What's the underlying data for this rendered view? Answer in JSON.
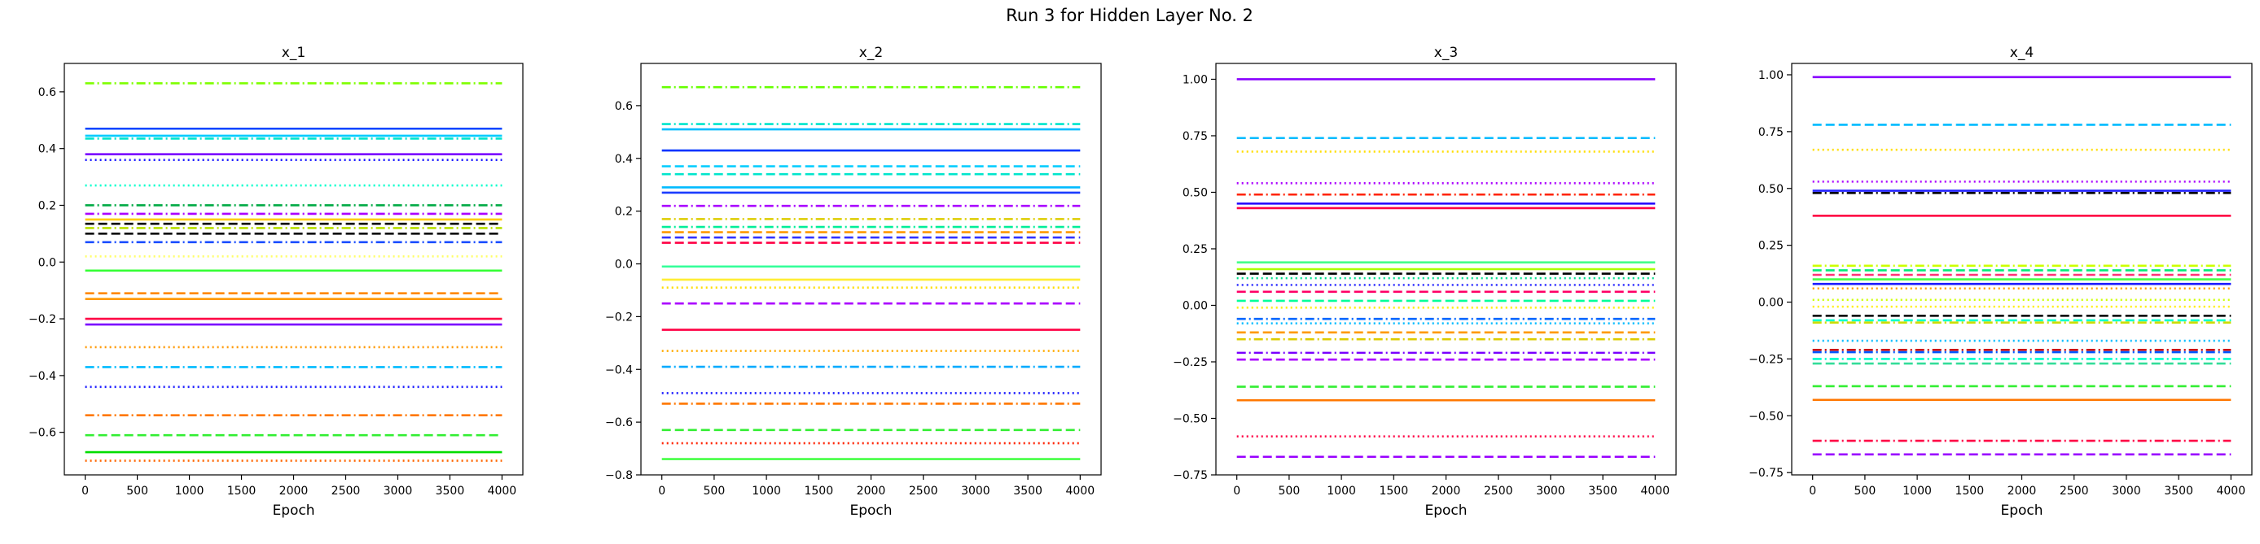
{
  "figure": {
    "title": "Run 3 for Hidden Layer No. 2"
  },
  "chart_data": [
    {
      "type": "line",
      "title": "x_1",
      "xlabel": "Epoch",
      "ylabel": "",
      "xlim": [
        -200,
        4200
      ],
      "ylim": [
        -0.75,
        0.7
      ],
      "xticks": [
        0,
        500,
        1000,
        1500,
        2000,
        2500,
        3000,
        3500,
        4000
      ],
      "yticks": [
        -0.6,
        -0.4,
        -0.2,
        0.0,
        0.2,
        0.4,
        0.6
      ],
      "ytick_labels": [
        "−0.6",
        "−0.4",
        "−0.2",
        "0.0",
        "0.2",
        "0.4",
        "0.6"
      ],
      "x": [
        0,
        4000
      ],
      "series": [
        {
          "value": 0.63,
          "color": "#7fff00",
          "style": "dashdot"
        },
        {
          "value": 0.47,
          "color": "#0044ff",
          "style": "solid"
        },
        {
          "value": 0.445,
          "color": "#00ccff",
          "style": "solid"
        },
        {
          "value": 0.435,
          "color": "#00e5cc",
          "style": "dashdot"
        },
        {
          "value": 0.38,
          "color": "#7a00ff",
          "style": "solid"
        },
        {
          "value": 0.36,
          "color": "#1a1aff",
          "style": "dotted"
        },
        {
          "value": 0.27,
          "color": "#00ffcc",
          "style": "dotted"
        },
        {
          "value": 0.2,
          "color": "#00aa44",
          "style": "dashdot"
        },
        {
          "value": 0.17,
          "color": "#aa00ff",
          "style": "dashdot"
        },
        {
          "value": 0.15,
          "color": "#ffcc00",
          "style": "solid"
        },
        {
          "value": 0.135,
          "color": "#000000",
          "style": "dashed"
        },
        {
          "value": 0.12,
          "color": "#b8e000",
          "style": "dashdot"
        },
        {
          "value": 0.1,
          "color": "#000000",
          "style": "dashed"
        },
        {
          "value": 0.07,
          "color": "#1a4dff",
          "style": "dashdot"
        },
        {
          "value": 0.02,
          "color": "#ffff66",
          "style": "dotted"
        },
        {
          "value": -0.03,
          "color": "#33ff33",
          "style": "solid"
        },
        {
          "value": -0.11,
          "color": "#ff8800",
          "style": "dashed"
        },
        {
          "value": -0.13,
          "color": "#ff9900",
          "style": "solid"
        },
        {
          "value": -0.2,
          "color": "#ff0044",
          "style": "solid"
        },
        {
          "value": -0.22,
          "color": "#7a00ff",
          "style": "solid"
        },
        {
          "value": -0.3,
          "color": "#ff9900",
          "style": "dotted"
        },
        {
          "value": -0.37,
          "color": "#00bbff",
          "style": "dashdot"
        },
        {
          "value": -0.44,
          "color": "#1a1aff",
          "style": "dotted"
        },
        {
          "value": -0.54,
          "color": "#ff7700",
          "style": "dashdot"
        },
        {
          "value": -0.61,
          "color": "#33ee33",
          "style": "dashed"
        },
        {
          "value": -0.67,
          "color": "#00dd00",
          "style": "solid"
        },
        {
          "value": -0.7,
          "color": "#ff6600",
          "style": "dotted"
        }
      ]
    },
    {
      "type": "line",
      "title": "x_2",
      "xlabel": "Epoch",
      "ylabel": "",
      "xlim": [
        -200,
        4200
      ],
      "ylim": [
        -0.8,
        0.76
      ],
      "xticks": [
        0,
        500,
        1000,
        1500,
        2000,
        2500,
        3000,
        3500,
        4000
      ],
      "yticks": [
        -0.8,
        -0.6,
        -0.4,
        -0.2,
        0.0,
        0.2,
        0.4,
        0.6
      ],
      "ytick_labels": [
        "−0.8",
        "−0.6",
        "−0.4",
        "−0.2",
        "0.0",
        "0.2",
        "0.4",
        "0.6"
      ],
      "x": [
        0,
        4000
      ],
      "series": [
        {
          "value": 0.67,
          "color": "#66ff00",
          "style": "dashdot"
        },
        {
          "value": 0.53,
          "color": "#00e5cc",
          "style": "dashdot"
        },
        {
          "value": 0.51,
          "color": "#00bbff",
          "style": "solid"
        },
        {
          "value": 0.43,
          "color": "#0033ff",
          "style": "solid"
        },
        {
          "value": 0.37,
          "color": "#00ccff",
          "style": "dashed"
        },
        {
          "value": 0.34,
          "color": "#00e5cc",
          "style": "dashed"
        },
        {
          "value": 0.29,
          "color": "#00bbff",
          "style": "solid"
        },
        {
          "value": 0.27,
          "color": "#1a3cff",
          "style": "solid"
        },
        {
          "value": 0.22,
          "color": "#aa00ff",
          "style": "dashdot"
        },
        {
          "value": 0.17,
          "color": "#ddcc00",
          "style": "dashdot"
        },
        {
          "value": 0.14,
          "color": "#00ee99",
          "style": "dashdot"
        },
        {
          "value": 0.12,
          "color": "#ff9900",
          "style": "dashed"
        },
        {
          "value": 0.1,
          "color": "#3333ff",
          "style": "dashed"
        },
        {
          "value": 0.08,
          "color": "#ff0044",
          "style": "dashed"
        },
        {
          "value": -0.01,
          "color": "#33ff99",
          "style": "solid"
        },
        {
          "value": -0.06,
          "color": "#ffee33",
          "style": "solid"
        },
        {
          "value": -0.09,
          "color": "#ffdd00",
          "style": "dotted"
        },
        {
          "value": -0.15,
          "color": "#aa00ff",
          "style": "dashed"
        },
        {
          "value": -0.25,
          "color": "#ff0044",
          "style": "solid"
        },
        {
          "value": -0.33,
          "color": "#ffaa00",
          "style": "dotted"
        },
        {
          "value": -0.39,
          "color": "#00aaff",
          "style": "dashdot"
        },
        {
          "value": -0.49,
          "color": "#1a1aff",
          "style": "dotted"
        },
        {
          "value": -0.53,
          "color": "#ff7700",
          "style": "dashdot"
        },
        {
          "value": -0.63,
          "color": "#33ee33",
          "style": "dashed"
        },
        {
          "value": -0.68,
          "color": "#ff2200",
          "style": "dotted"
        },
        {
          "value": -0.74,
          "color": "#44ff44",
          "style": "solid"
        }
      ]
    },
    {
      "type": "line",
      "title": "x_3",
      "xlabel": "Epoch",
      "ylabel": "",
      "xlim": [
        -200,
        4200
      ],
      "ylim": [
        -0.75,
        1.07
      ],
      "xticks": [
        0,
        500,
        1000,
        1500,
        2000,
        2500,
        3000,
        3500,
        4000
      ],
      "yticks": [
        -0.75,
        -0.5,
        -0.25,
        0.0,
        0.25,
        0.5,
        0.75,
        1.0
      ],
      "ytick_labels": [
        "−0.75",
        "−0.50",
        "−0.25",
        "0.00",
        "0.25",
        "0.50",
        "0.75",
        "1.00"
      ],
      "x": [
        0,
        4000
      ],
      "series": [
        {
          "value": 1.0,
          "color": "#8800ff",
          "style": "solid"
        },
        {
          "value": 0.74,
          "color": "#00bbff",
          "style": "dashed"
        },
        {
          "value": 0.68,
          "color": "#ffdd00",
          "style": "dotted"
        },
        {
          "value": 0.54,
          "color": "#aa00ff",
          "style": "dotted"
        },
        {
          "value": 0.49,
          "color": "#ff2200",
          "style": "dashdot"
        },
        {
          "value": 0.45,
          "color": "#2200ff",
          "style": "solid"
        },
        {
          "value": 0.43,
          "color": "#ff0044",
          "style": "solid"
        },
        {
          "value": 0.19,
          "color": "#44ff88",
          "style": "solid"
        },
        {
          "value": 0.16,
          "color": "#aaff00",
          "style": "solid"
        },
        {
          "value": 0.14,
          "color": "#000000",
          "style": "dashed"
        },
        {
          "value": 0.12,
          "color": "#00dd88",
          "style": "dotted"
        },
        {
          "value": 0.09,
          "color": "#3333ff",
          "style": "dotted"
        },
        {
          "value": 0.06,
          "color": "#ff0066",
          "style": "dashed"
        },
        {
          "value": 0.02,
          "color": "#00ff99",
          "style": "dashed"
        },
        {
          "value": -0.01,
          "color": "#ffee00",
          "style": "dotted"
        },
        {
          "value": -0.06,
          "color": "#0066ff",
          "style": "dashdot"
        },
        {
          "value": -0.08,
          "color": "#00bbff",
          "style": "dotted"
        },
        {
          "value": -0.12,
          "color": "#ff9900",
          "style": "dashed"
        },
        {
          "value": -0.15,
          "color": "#ddcc00",
          "style": "dashdot"
        },
        {
          "value": -0.21,
          "color": "#7a00ff",
          "style": "dashdot"
        },
        {
          "value": -0.24,
          "color": "#aa00ff",
          "style": "dashed"
        },
        {
          "value": -0.36,
          "color": "#33ee33",
          "style": "dashed"
        },
        {
          "value": -0.42,
          "color": "#ff7700",
          "style": "solid"
        },
        {
          "value": -0.58,
          "color": "#ff0044",
          "style": "dotted"
        },
        {
          "value": -0.67,
          "color": "#9900ff",
          "style": "dashed"
        }
      ]
    },
    {
      "type": "line",
      "title": "x_4",
      "xlabel": "Epoch",
      "ylabel": "",
      "xlim": [
        -200,
        4200
      ],
      "ylim": [
        -0.76,
        1.05
      ],
      "xticks": [
        0,
        500,
        1000,
        1500,
        2000,
        2500,
        3000,
        3500,
        4000
      ],
      "yticks": [
        -0.75,
        -0.5,
        -0.25,
        0.0,
        0.25,
        0.5,
        0.75,
        1.0
      ],
      "ytick_labels": [
        "−0.75",
        "−0.50",
        "−0.25",
        "0.00",
        "0.25",
        "0.50",
        "0.75",
        "1.00"
      ],
      "x": [
        0,
        4000
      ],
      "series": [
        {
          "value": 0.99,
          "color": "#8800ff",
          "style": "solid"
        },
        {
          "value": 0.78,
          "color": "#00bbff",
          "style": "dashed"
        },
        {
          "value": 0.67,
          "color": "#ffdd00",
          "style": "dotted"
        },
        {
          "value": 0.53,
          "color": "#aa00ff",
          "style": "dotted"
        },
        {
          "value": 0.49,
          "color": "#2222ff",
          "style": "solid"
        },
        {
          "value": 0.48,
          "color": "#000000",
          "style": "dashdot"
        },
        {
          "value": 0.38,
          "color": "#ff0044",
          "style": "solid"
        },
        {
          "value": 0.16,
          "color": "#ccff00",
          "style": "dashdot"
        },
        {
          "value": 0.14,
          "color": "#00ee77",
          "style": "dashed"
        },
        {
          "value": 0.12,
          "color": "#ff3377",
          "style": "dashed"
        },
        {
          "value": 0.1,
          "color": "#44ff44",
          "style": "solid"
        },
        {
          "value": 0.08,
          "color": "#1a1aff",
          "style": "solid"
        },
        {
          "value": 0.06,
          "color": "#ff9900",
          "style": "dotted"
        },
        {
          "value": 0.01,
          "color": "#ccff00",
          "style": "dotted"
        },
        {
          "value": -0.02,
          "color": "#ffee00",
          "style": "dotted"
        },
        {
          "value": -0.06,
          "color": "#000000",
          "style": "dashed"
        },
        {
          "value": -0.08,
          "color": "#00ffcc",
          "style": "dashed"
        },
        {
          "value": -0.09,
          "color": "#ccdd00",
          "style": "dashdot"
        },
        {
          "value": -0.17,
          "color": "#00bbff",
          "style": "dotted"
        },
        {
          "value": -0.21,
          "color": "#cc0000",
          "style": "dashdot"
        },
        {
          "value": -0.22,
          "color": "#0055ff",
          "style": "dashdot"
        },
        {
          "value": -0.25,
          "color": "#00ffcc",
          "style": "dashdot"
        },
        {
          "value": -0.27,
          "color": "#33dd99",
          "style": "dashed"
        },
        {
          "value": -0.37,
          "color": "#33ee33",
          "style": "dashed"
        },
        {
          "value": -0.43,
          "color": "#ff7700",
          "style": "solid"
        },
        {
          "value": -0.61,
          "color": "#ff0044",
          "style": "dashdot"
        },
        {
          "value": -0.67,
          "color": "#9900ff",
          "style": "dashed"
        }
      ]
    }
  ]
}
